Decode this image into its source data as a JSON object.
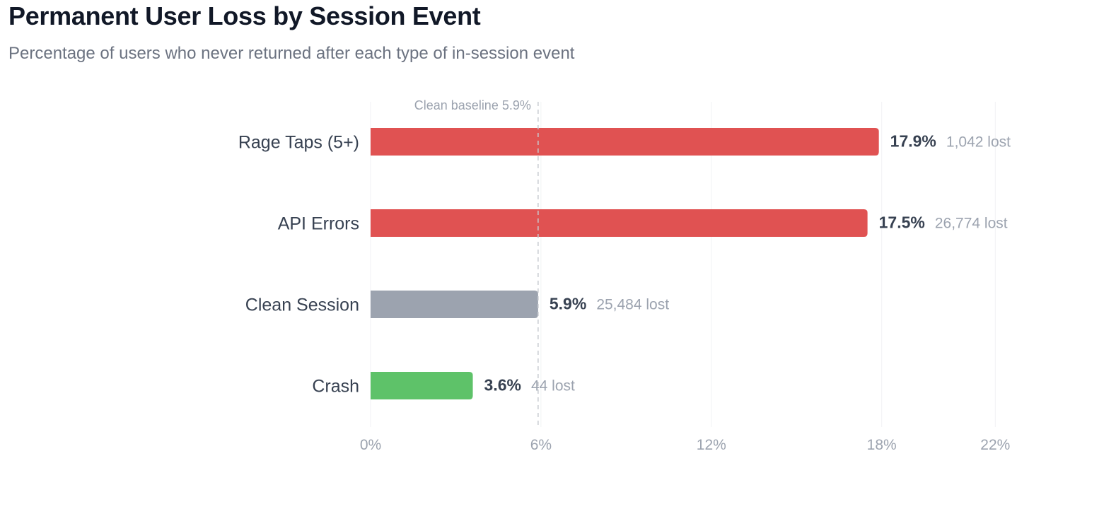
{
  "header": {
    "title": "Permanent User Loss by Session Event",
    "subtitle": "Percentage of users who never returned after each type of in-session event"
  },
  "chart_data": {
    "type": "bar",
    "orientation": "horizontal",
    "title": "Permanent User Loss by Session Event",
    "subtitle": "Percentage of users who never returned after each type of in-session event",
    "categories": [
      "Rage Taps (5+)",
      "API Errors",
      "Clean Session",
      "Crash"
    ],
    "values": [
      17.9,
      17.5,
      5.9,
      3.6
    ],
    "value_labels": [
      "17.9%",
      "17.5%",
      "5.9%",
      "3.6%"
    ],
    "lost_labels": [
      "1,042 lost",
      "26,774 lost",
      "25,484 lost",
      "44 lost"
    ],
    "bar_colors": [
      "#e05252",
      "#e05252",
      "#9ca3af",
      "#5ec269"
    ],
    "xlim": [
      0,
      22
    ],
    "x_ticks": [
      0,
      6,
      12,
      18,
      22
    ],
    "x_tick_labels": [
      "0%",
      "6%",
      "12%",
      "18%",
      "22%"
    ],
    "reference_line": {
      "value": 5.9,
      "label": "Clean baseline 5.9%"
    },
    "grid": true,
    "xlabel": "",
    "ylabel": ""
  }
}
